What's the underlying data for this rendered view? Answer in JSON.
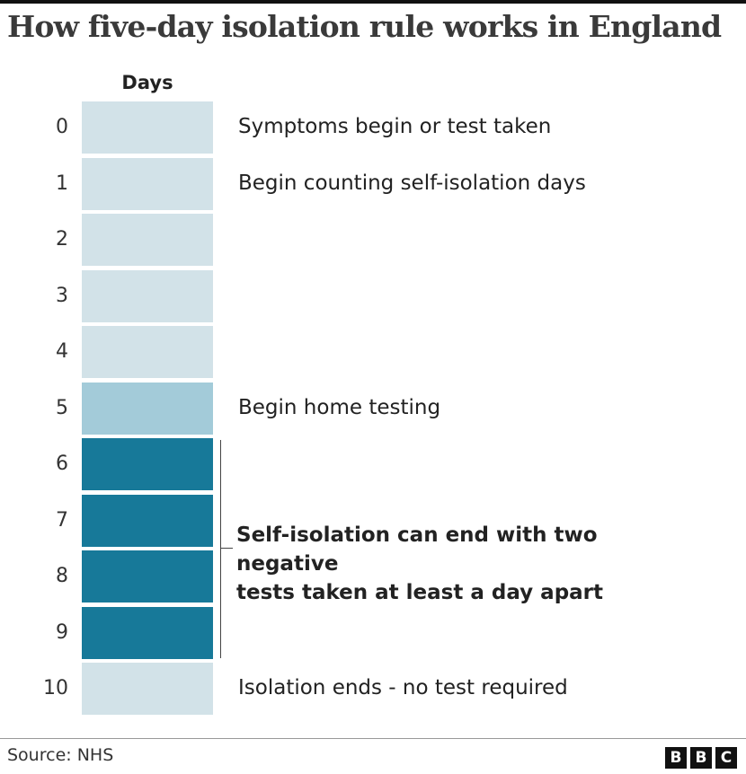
{
  "title": "How five-day isolation rule works in England",
  "column_header": "Days",
  "colors": {
    "light": "#d2e2e8",
    "medium": "#a3cbd9",
    "dark": "#177999"
  },
  "rows": [
    {
      "day": "0",
      "label": "Symptoms begin or test taken",
      "shade": "light"
    },
    {
      "day": "1",
      "label": "Begin counting self-isolation days",
      "shade": "light"
    },
    {
      "day": "2",
      "label": "",
      "shade": "light"
    },
    {
      "day": "3",
      "label": "",
      "shade": "light"
    },
    {
      "day": "4",
      "label": "",
      "shade": "light"
    },
    {
      "day": "5",
      "label": "Begin home testing",
      "shade": "medium"
    },
    {
      "day": "6",
      "label": "",
      "shade": "dark"
    },
    {
      "day": "7",
      "label": "",
      "shade": "dark"
    },
    {
      "day": "8",
      "label": "",
      "shade": "dark"
    },
    {
      "day": "9",
      "label": "",
      "shade": "dark"
    },
    {
      "day": "10",
      "label": "Isolation ends - no test required",
      "shade": "light"
    }
  ],
  "bracket": {
    "line1": "Self-isolation can end with two negative",
    "line2": "tests taken at least a day apart"
  },
  "footer": {
    "source": "Source: NHS",
    "logo": [
      "B",
      "B",
      "C"
    ]
  }
}
